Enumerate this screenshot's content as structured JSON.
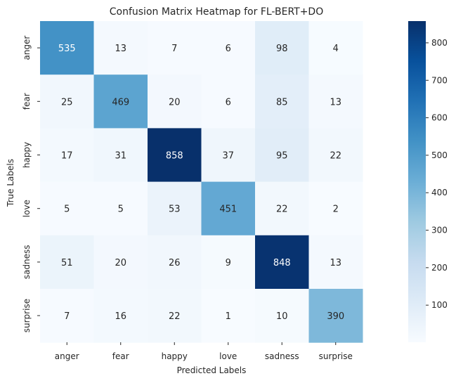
{
  "chart_data": {
    "type": "heatmap",
    "title": "Confusion Matrix Heatmap for FL-BERT+DO",
    "xlabel": "Predicted Labels",
    "ylabel": "True Labels",
    "x_categories": [
      "anger",
      "fear",
      "happy",
      "love",
      "sadness",
      "surprise"
    ],
    "y_categories": [
      "anger",
      "fear",
      "happy",
      "love",
      "sadness",
      "surprise"
    ],
    "values": [
      [
        535,
        13,
        7,
        6,
        98,
        4
      ],
      [
        25,
        469,
        20,
        6,
        85,
        13
      ],
      [
        17,
        31,
        858,
        37,
        95,
        22
      ],
      [
        5,
        5,
        53,
        451,
        22,
        2
      ],
      [
        51,
        20,
        26,
        9,
        848,
        13
      ],
      [
        7,
        16,
        22,
        1,
        10,
        390
      ]
    ],
    "colormap": "Blues",
    "colorbar": {
      "range": [
        1,
        858
      ],
      "ticks": [
        100,
        200,
        300,
        400,
        500,
        600,
        700,
        800
      ]
    },
    "legend": "colorbar-right",
    "grid": false
  }
}
